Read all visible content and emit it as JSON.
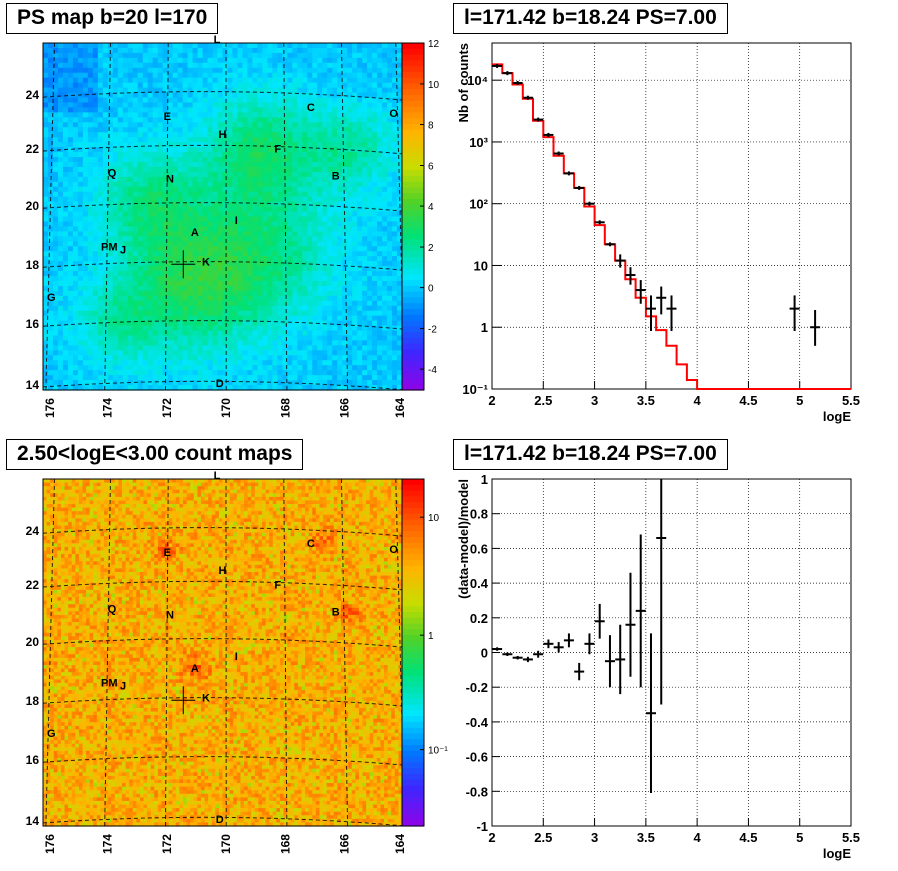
{
  "panels": {
    "ps_map": {
      "title": "PS map b=20 l=170",
      "x_ticks": [
        "176",
        "174",
        "172",
        "170",
        "168",
        "166",
        "164"
      ],
      "y_ticks": [
        "14",
        "16",
        "18",
        "20",
        "22",
        "24"
      ],
      "colorbar_ticks": [
        "12",
        "10",
        "8",
        "6",
        "4",
        "2",
        "0",
        "-2",
        "-4"
      ],
      "source_labels": [
        "L",
        "E",
        "C",
        "O",
        "H",
        "F",
        "Q",
        "N",
        "B",
        "I",
        "A",
        "PM",
        "J",
        "K",
        "G",
        "D"
      ]
    },
    "count_map": {
      "title": "2.50<logE<3.00 count maps",
      "x_ticks": [
        "176",
        "174",
        "172",
        "170",
        "168",
        "166",
        "164"
      ],
      "y_ticks": [
        "14",
        "16",
        "18",
        "20",
        "22",
        "24"
      ],
      "colorbar_ticks": [
        "10",
        "1",
        "10⁻¹"
      ],
      "source_labels": [
        "L",
        "E",
        "C",
        "O",
        "H",
        "F",
        "Q",
        "N",
        "B",
        "I",
        "A",
        "PM",
        "J",
        "K",
        "G",
        "D"
      ]
    },
    "spectrum": {
      "title": "l=171.42 b=18.24 PS=7.00",
      "xlabel": "logE",
      "ylabel": "Nb of counts",
      "x_ticks": [
        "2",
        "2.5",
        "3",
        "3.5",
        "4",
        "4.5",
        "5",
        "5.5"
      ],
      "y_ticks": [
        "10⁻¹",
        "1",
        "10",
        "10²",
        "10³",
        "10⁴"
      ]
    },
    "residual": {
      "title": "l=171.42 b=18.24 PS=7.00",
      "xlabel": "logE",
      "ylabel": "(data-model)/model",
      "x_ticks": [
        "2",
        "2.5",
        "3",
        "3.5",
        "4",
        "4.5",
        "5",
        "5.5"
      ],
      "y_ticks": [
        "1",
        "0.8",
        "0.6",
        "0.4",
        "0.2",
        "0",
        "-0.2",
        "-0.4",
        "-0.6",
        "-0.8",
        "-1"
      ]
    }
  },
  "colors": {
    "model_line": "#ff0000",
    "data": "#000000",
    "grid": "#000000"
  },
  "chart_data": [
    {
      "type": "heatmap",
      "title": "PS map b=20 l=170",
      "xlim": [
        176.5,
        163.5
      ],
      "ylim": [
        14,
        25.7
      ],
      "value_range": [
        -5,
        12
      ],
      "sources": [
        {
          "name": "L",
          "l": 170.2,
          "b": 25.7
        },
        {
          "name": "E",
          "l": 172.0,
          "b": 23.1
        },
        {
          "name": "C",
          "l": 166.8,
          "b": 23.4
        },
        {
          "name": "O",
          "l": 163.8,
          "b": 23.2
        },
        {
          "name": "H",
          "l": 170.0,
          "b": 22.5
        },
        {
          "name": "F",
          "l": 168.0,
          "b": 22.0
        },
        {
          "name": "Q",
          "l": 174.0,
          "b": 21.2
        },
        {
          "name": "N",
          "l": 171.9,
          "b": 21.0
        },
        {
          "name": "B",
          "l": 165.9,
          "b": 21.1
        },
        {
          "name": "I",
          "l": 169.5,
          "b": 19.6
        },
        {
          "name": "A",
          "l": 171.0,
          "b": 19.2
        },
        {
          "name": "PM",
          "l": 174.1,
          "b": 18.7
        },
        {
          "name": "J",
          "l": 173.6,
          "b": 18.6
        },
        {
          "name": "K",
          "l": 170.6,
          "b": 18.2
        },
        {
          "name": "G",
          "l": 176.2,
          "b": 17.0
        },
        {
          "name": "D",
          "l": 170.1,
          "b": 14.1
        }
      ],
      "marker": {
        "l": 171.42,
        "b": 18.24
      }
    },
    {
      "type": "heatmap",
      "title": "2.50<logE<3.00 count maps",
      "xlim": [
        176.5,
        163.5
      ],
      "ylim": [
        14,
        25.7
      ],
      "scale": "log",
      "marker": {
        "l": 171.42,
        "b": 18.24
      }
    },
    {
      "type": "line",
      "title": "l=171.42 b=18.24 PS=7.00",
      "xlabel": "logE",
      "ylabel": "Nb of counts",
      "xlim": [
        2,
        5.5
      ],
      "ylim": [
        0.1,
        40000
      ],
      "yscale": "log",
      "grid": true,
      "series": [
        {
          "kind": "model_step",
          "bin_edges": [
            2.0,
            2.1,
            2.2,
            2.3,
            2.4,
            2.5,
            2.6,
            2.7,
            2.8,
            2.9,
            3.0,
            3.1,
            3.2,
            3.3,
            3.4,
            3.5,
            3.6,
            3.7,
            3.8,
            3.9,
            4.0,
            5.5
          ],
          "values": [
            18000,
            13000,
            8500,
            5000,
            2200,
            1200,
            600,
            310,
            180,
            90,
            45,
            22,
            12,
            6,
            3,
            1.5,
            0.9,
            0.5,
            0.25,
            0.14,
            0.1
          ]
        },
        {
          "kind": "data",
          "points": [
            {
              "x": 2.05,
              "y": 17000
            },
            {
              "x": 2.15,
              "y": 13000
            },
            {
              "x": 2.25,
              "y": 9000
            },
            {
              "x": 2.35,
              "y": 5200
            },
            {
              "x": 2.45,
              "y": 2300
            },
            {
              "x": 2.55,
              "y": 1300
            },
            {
              "x": 2.65,
              "y": 650
            },
            {
              "x": 2.75,
              "y": 310
            },
            {
              "x": 2.85,
              "y": 180
            },
            {
              "x": 2.95,
              "y": 100
            },
            {
              "x": 3.05,
              "y": 50
            },
            {
              "x": 3.15,
              "y": 22
            },
            {
              "x": 3.25,
              "y": 12
            },
            {
              "x": 3.35,
              "y": 7
            },
            {
              "x": 3.45,
              "y": 4
            },
            {
              "x": 3.55,
              "y": 2
            },
            {
              "x": 3.65,
              "y": 3
            },
            {
              "x": 3.75,
              "y": 2
            },
            {
              "x": 4.95,
              "y": 2
            },
            {
              "x": 5.15,
              "y": 1
            }
          ]
        }
      ]
    },
    {
      "type": "scatter",
      "title": "l=171.42 b=18.24 PS=7.00",
      "xlabel": "logE",
      "ylabel": "(data-model)/model",
      "xlim": [
        2,
        5.5
      ],
      "ylim": [
        -1,
        1
      ],
      "grid": true,
      "points": [
        {
          "x": 2.05,
          "y": 0.02,
          "err": 0.01
        },
        {
          "x": 2.15,
          "y": -0.01,
          "err": 0.01
        },
        {
          "x": 2.25,
          "y": -0.03,
          "err": 0.01
        },
        {
          "x": 2.35,
          "y": -0.04,
          "err": 0.015
        },
        {
          "x": 2.45,
          "y": -0.01,
          "err": 0.02
        },
        {
          "x": 2.55,
          "y": 0.05,
          "err": 0.025
        },
        {
          "x": 2.65,
          "y": 0.03,
          "err": 0.03
        },
        {
          "x": 2.75,
          "y": 0.07,
          "err": 0.04
        },
        {
          "x": 2.85,
          "y": -0.11,
          "err": 0.05
        },
        {
          "x": 2.95,
          "y": 0.05,
          "err": 0.06
        },
        {
          "x": 3.05,
          "y": 0.18,
          "err": 0.1
        },
        {
          "x": 3.15,
          "y": -0.05,
          "err": 0.15
        },
        {
          "x": 3.25,
          "y": -0.04,
          "err": 0.2
        },
        {
          "x": 3.35,
          "y": 0.16,
          "err": 0.3
        },
        {
          "x": 3.45,
          "y": 0.24,
          "err": 0.44
        },
        {
          "x": 3.55,
          "y": -0.35,
          "err": 0.46
        },
        {
          "x": 3.65,
          "y": 0.66,
          "err": 0.96
        }
      ]
    }
  ]
}
